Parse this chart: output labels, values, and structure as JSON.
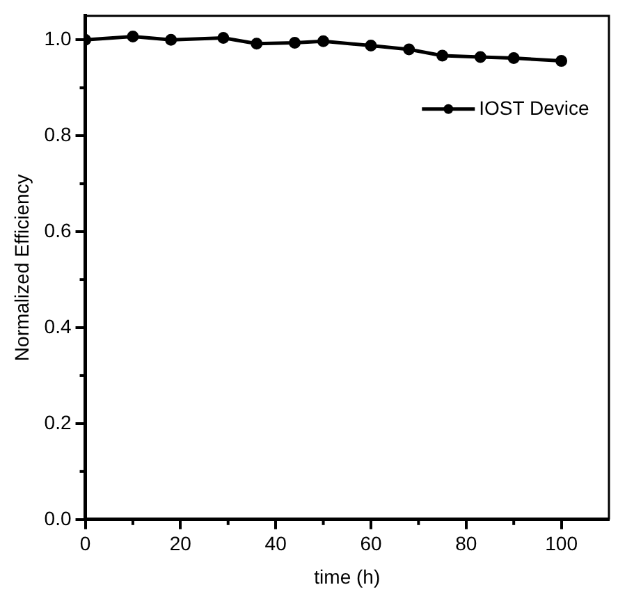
{
  "chart_data": {
    "type": "line",
    "xlabel": "time (h)",
    "ylabel": "Normalized Efficiency",
    "x": [
      0,
      10,
      18,
      29,
      36,
      44,
      50,
      60,
      68,
      75,
      83,
      90,
      100
    ],
    "series": [
      {
        "name": "IOST Device",
        "color": "#000000",
        "values": [
          1.0,
          1.007,
          1.0,
          1.004,
          0.992,
          0.994,
          0.997,
          0.988,
          0.98,
          0.967,
          0.964,
          0.962,
          0.956
        ]
      }
    ],
    "xlim": [
      0,
      110
    ],
    "xticks": [
      0,
      20,
      40,
      60,
      80,
      100
    ],
    "ylim": [
      0,
      1.05
    ],
    "yticks": [
      {
        "value": 0,
        "label": "0.0"
      },
      0.2,
      0.4,
      0.6,
      0.8,
      {
        "value": 1,
        "label": "1.0"
      }
    ],
    "grid": false,
    "legend": "top right",
    "marker": "circle",
    "line_style": "solid"
  }
}
